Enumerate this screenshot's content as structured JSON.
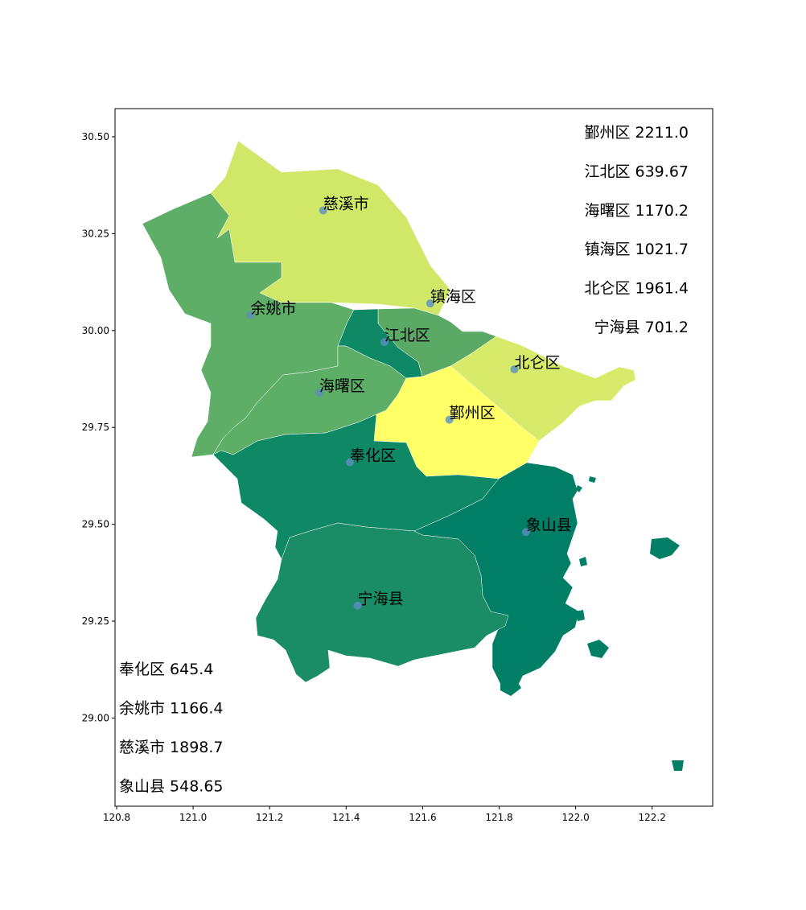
{
  "map": {
    "x_ticks": [
      "120.8",
      "121.0",
      "121.2",
      "121.4",
      "121.6",
      "121.8",
      "122.0",
      "122.2"
    ],
    "y_ticks": [
      "30.50",
      "30.25",
      "30.00",
      "29.75",
      "29.50",
      "29.25",
      "29.00"
    ],
    "x_tick_values": [
      120.8,
      121.0,
      121.2,
      121.4,
      121.6,
      121.8,
      122.0,
      122.2
    ],
    "y_tick_values": [
      30.5,
      30.25,
      30.0,
      29.75,
      29.5,
      29.25,
      29.0
    ],
    "regions": [
      {
        "name": "慈溪市",
        "value": 1898.7,
        "fill": "#d0e768",
        "lon": 121.34,
        "lat": 30.31
      },
      {
        "name": "余姚市",
        "value": 1166.4,
        "fill": "#5eae67",
        "lon": 121.15,
        "lat": 30.04
      },
      {
        "name": "镇海区",
        "value": 1021.7,
        "fill": "#5aa964",
        "lon": 121.62,
        "lat": 30.07
      },
      {
        "name": "江北区",
        "value": 639.67,
        "fill": "#0f8866",
        "lon": 121.5,
        "lat": 29.97
      },
      {
        "name": "北仑区",
        "value": 1961.4,
        "fill": "#d8ea6a",
        "lon": 121.84,
        "lat": 29.9
      },
      {
        "name": "海曙区",
        "value": 1170.2,
        "fill": "#5dae66",
        "lon": 121.33,
        "lat": 29.84
      },
      {
        "name": "鄞州区",
        "value": 2211.0,
        "fill": "#ffff66",
        "lon": 121.67,
        "lat": 29.77
      },
      {
        "name": "奉化区",
        "value": 645.4,
        "fill": "#0f8866",
        "lon": 121.41,
        "lat": 29.66
      },
      {
        "name": "象山县",
        "value": 548.65,
        "fill": "#007f66",
        "lon": 121.87,
        "lat": 29.48
      },
      {
        "name": "宁海县",
        "value": 701.2,
        "fill": "#1a8d66",
        "lon": 121.43,
        "lat": 29.29
      }
    ],
    "stats_right": [
      "鄞州区 2211.0",
      "江北区 639.67",
      "海曙区 1170.2",
      "镇海区 1021.7",
      "北仑区 1961.4",
      "宁海县 701.2"
    ],
    "stats_left": [
      "奉化区 645.4",
      "余姚市 1166.4",
      "慈溪市 1898.7",
      "象山县 548.65"
    ],
    "marker_color": "#5b8fbf",
    "outline_color": "#ffffff"
  }
}
